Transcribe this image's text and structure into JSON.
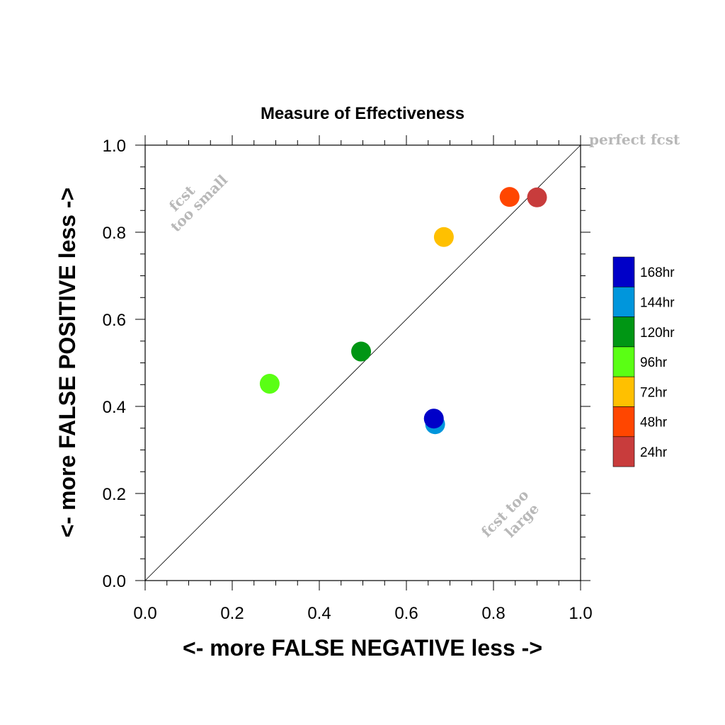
{
  "chart_data": {
    "type": "scatter",
    "title": "Measure of Effectiveness",
    "xlabel": "<- more   FALSE NEGATIVE   less ->",
    "ylabel": "<- more   FALSE POSITIVE   less ->",
    "xlim": [
      0.0,
      1.0
    ],
    "ylim": [
      0.0,
      1.0
    ],
    "xticks": [
      "0.0",
      "0.2",
      "0.4",
      "0.6",
      "0.8",
      "1.0"
    ],
    "yticks": [
      "0.0",
      "0.2",
      "0.4",
      "0.6",
      "0.8",
      "1.0"
    ],
    "grid": false,
    "reference_line": "diagonal y = x",
    "annotations": {
      "perfect": "perfect fcst",
      "too_small_line1": "fcst",
      "too_small_line2": "too small",
      "too_large_line1": "fcst too",
      "too_large_line2": "large"
    },
    "legend_position": "right",
    "series": [
      {
        "name": "24hr",
        "color": "#c83c3c",
        "x": 0.9,
        "y": 0.88
      },
      {
        "name": "48hr",
        "color": "#ff4600",
        "x": 0.837,
        "y": 0.881
      },
      {
        "name": "72hr",
        "color": "#ffc000",
        "x": 0.686,
        "y": 0.789
      },
      {
        "name": "96hr",
        "color": "#5aff14",
        "x": 0.286,
        "y": 0.452
      },
      {
        "name": "120hr",
        "color": "#009614",
        "x": 0.496,
        "y": 0.526
      },
      {
        "name": "144hr",
        "color": "#0096dc",
        "x": 0.666,
        "y": 0.359
      },
      {
        "name": "168hr",
        "color": "#0000c8",
        "x": 0.663,
        "y": 0.372
      }
    ],
    "legend_order": [
      "168hr",
      "144hr",
      "120hr",
      "96hr",
      "72hr",
      "48hr",
      "24hr"
    ]
  }
}
